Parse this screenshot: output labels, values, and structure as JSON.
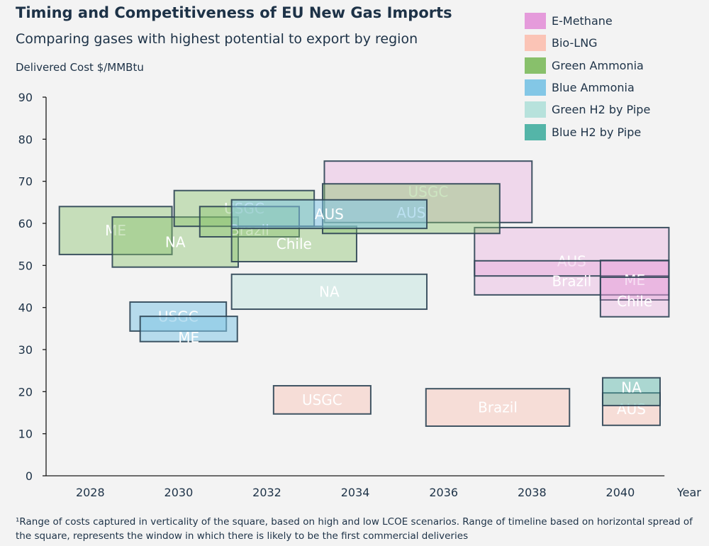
{
  "chart_data": {
    "type": "range-box",
    "title": "Timing and Competitiveness of EU New Gas Imports",
    "subtitle": "Comparing gases with highest potential to export  by region",
    "ylabel": "Delivered Cost $/MMBtu",
    "xlabel": "Year",
    "xlim": [
      2027,
      2041
    ],
    "ylim": [
      0,
      90
    ],
    "xticks": [
      "2028",
      "2030",
      "2032",
      "2034",
      "2036",
      "2038",
      "2040"
    ],
    "yticks": [
      "0",
      "10",
      "20",
      "30",
      "40",
      "50",
      "60",
      "70",
      "80",
      "90"
    ],
    "grid": false,
    "legend_position": "top-right",
    "footnote": "¹Range of costs captured in verticality of the square, based on high and low LCOE scenarios. Range of timeline based on horizontal spread of the square, represents the window in which there is likely to be the first commercial deliveries",
    "series": [
      {
        "name": "E-Methane",
        "color": "#e59bdb",
        "opacity": 0.32,
        "boxes": [
          {
            "label": "USGC",
            "x": [
              2033.3,
              2038.0
            ],
            "y": [
              60.2,
              74.8
            ]
          },
          {
            "label": "AUS",
            "x": [
              2036.7,
              2041.1
            ],
            "y": [
              43.0,
              59.0
            ]
          },
          {
            "label": "Brazil",
            "x": [
              2036.7,
              2041.1
            ],
            "y": [
              47.5,
              51.1
            ]
          },
          {
            "label": "ME",
            "x": [
              2039.55,
              2041.1
            ],
            "y": [
              41.8,
              51.2
            ]
          },
          {
            "label": "Chile",
            "x": [
              2039.55,
              2041.1
            ],
            "y": [
              37.8,
              47.2
            ]
          }
        ]
      },
      {
        "name": "Bio-LNG",
        "color": "#fbc4b6",
        "opacity": 0.45,
        "boxes": [
          {
            "label": "USGC",
            "x": [
              2032.15,
              2034.35
            ],
            "y": [
              14.7,
              21.4
            ]
          },
          {
            "label": "Brazil",
            "x": [
              2035.6,
              2038.85
            ],
            "y": [
              11.8,
              20.7
            ]
          },
          {
            "label": "AUS",
            "x": [
              2039.6,
              2040.9
            ],
            "y": [
              12.0,
              19.7
            ]
          }
        ]
      },
      {
        "name": "Green Ammonia",
        "color": "#88c06b",
        "opacity": 0.42,
        "boxes": [
          {
            "label": "ME",
            "x": [
              2027.3,
              2029.85
            ],
            "y": [
              52.6,
              64.0
            ]
          },
          {
            "label": "NA",
            "x": [
              2028.5,
              2031.35
            ],
            "y": [
              49.6,
              61.5
            ]
          },
          {
            "label": "USGC",
            "x": [
              2029.9,
              2033.07
            ],
            "y": [
              59.3,
              67.8
            ]
          },
          {
            "label": "Brazil",
            "x": [
              2030.48,
              2032.73
            ],
            "y": [
              56.8,
              64.0
            ]
          },
          {
            "label": "Chile",
            "x": [
              2031.2,
              2034.03
            ],
            "y": [
              50.9,
              59.3
            ]
          },
          {
            "label": "AUS",
            "x": [
              2033.26,
              2037.27
            ],
            "y": [
              57.6,
              69.4
            ]
          }
        ]
      },
      {
        "name": "Blue Ammonia",
        "color": "#83c7e6",
        "opacity": 0.55,
        "boxes": [
          {
            "label": "USGC",
            "x": [
              2028.9,
              2031.08
            ],
            "y": [
              34.4,
              41.3
            ]
          },
          {
            "label": "ME",
            "x": [
              2029.13,
              2031.33
            ],
            "y": [
              31.9,
              37.9
            ]
          },
          {
            "label": "AUS",
            "x": [
              2031.2,
              2035.62
            ],
            "y": [
              58.8,
              65.6
            ]
          }
        ]
      },
      {
        "name": "Green H2 by Pipe",
        "color": "#b7e2dc",
        "opacity": 0.42,
        "boxes": [
          {
            "label": "NA",
            "x": [
              2031.2,
              2035.62
            ],
            "y": [
              39.6,
              47.9
            ]
          }
        ]
      },
      {
        "name": "Blue H2 by Pipe",
        "color": "#54b5a8",
        "opacity": 0.45,
        "boxes": [
          {
            "label": "NA",
            "x": [
              2039.6,
              2040.9
            ],
            "y": [
              16.7,
              23.3
            ]
          }
        ]
      }
    ]
  }
}
